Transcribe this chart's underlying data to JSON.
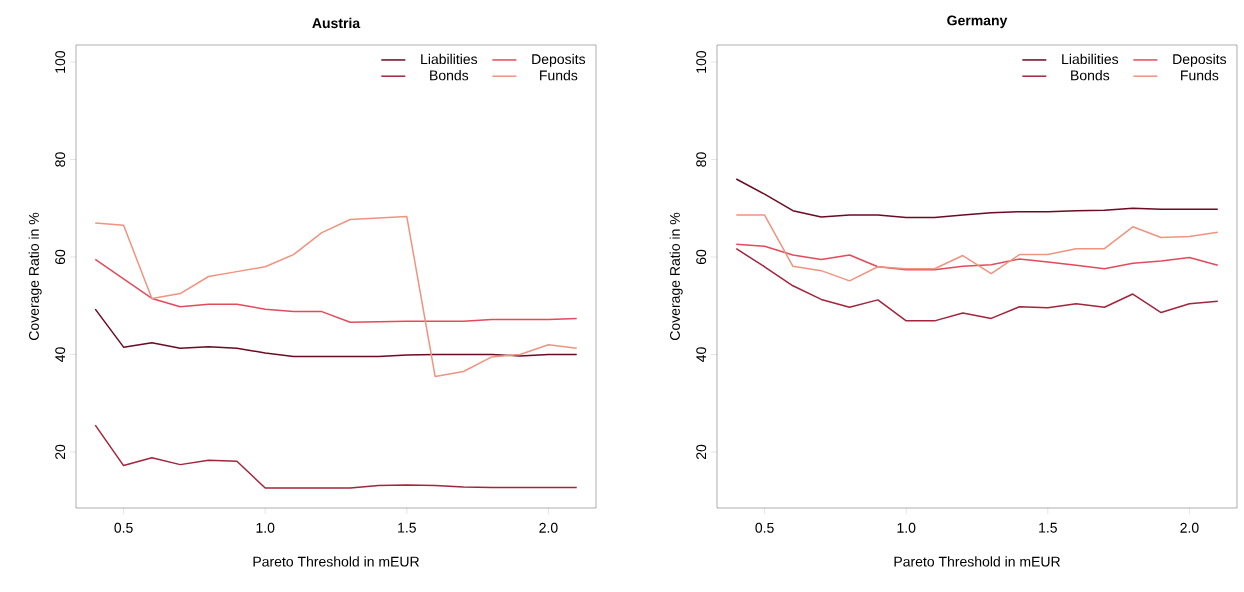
{
  "chart_data": [
    {
      "type": "line",
      "title": "Austria",
      "xlabel": "Pareto Threshold in mEUR",
      "ylabel": "Coverage Ratio in %",
      "legend": "top right",
      "x": [
        0.4,
        0.5,
        0.6,
        0.7,
        0.8,
        0.9,
        1.0,
        1.1,
        1.2,
        1.3,
        1.4,
        1.5,
        1.6,
        1.7,
        1.8,
        1.9,
        2.0,
        2.1
      ],
      "xlim": [
        0.332,
        2.168
      ],
      "ylim": [
        8.5,
        103.5
      ],
      "xticks": [
        {
          "value": 0.5,
          "label": "0.5"
        },
        {
          "value": 1.0,
          "label": "1.0"
        },
        {
          "value": 1.5,
          "label": "1.5"
        },
        {
          "value": 2.0,
          "label": "2.0"
        }
      ],
      "yticks": [
        20,
        40,
        60,
        80,
        100
      ],
      "series": [
        {
          "name": "Liabilities",
          "color": "#6b0a23",
          "values": [
            49.3,
            41.5,
            42.4,
            41.3,
            41.6,
            41.3,
            40.3,
            39.6,
            39.6,
            39.6,
            39.6,
            39.9,
            40,
            40,
            40,
            39.7,
            40,
            40
          ]
        },
        {
          "name": "Bonds",
          "color": "#a3243b",
          "values": [
            25.5,
            17.2,
            18.8,
            17.4,
            18.3,
            18.1,
            12.6,
            12.6,
            12.6,
            12.6,
            13.1,
            13.2,
            13.1,
            12.8,
            12.7,
            12.7,
            12.7,
            12.7
          ]
        },
        {
          "name": "Deposits",
          "color": "#e34a5b",
          "values": [
            59.5,
            55.5,
            51.5,
            49.8,
            50.3,
            50.3,
            49.3,
            48.8,
            48.8,
            46.6,
            46.7,
            46.8,
            46.8,
            46.8,
            47.2,
            47.2,
            47.2,
            47.4
          ]
        },
        {
          "name": "Funds",
          "color": "#f0937f",
          "values": [
            67,
            66.5,
            51.5,
            52.5,
            56,
            57,
            58,
            60.5,
            65,
            67.7,
            68,
            68.3,
            35.5,
            36.5,
            39.5,
            40,
            42,
            41.3
          ]
        }
      ]
    },
    {
      "type": "line",
      "title": "Germany",
      "xlabel": "Pareto Threshold in mEUR",
      "ylabel": "Coverage Ratio in %",
      "legend": "top right",
      "x": [
        0.4,
        0.5,
        0.6,
        0.7,
        0.8,
        0.9,
        1.0,
        1.1,
        1.2,
        1.3,
        1.4,
        1.5,
        1.6,
        1.7,
        1.8,
        1.9,
        2.0,
        2.1
      ],
      "xlim": [
        0.332,
        2.168
      ],
      "ylim": [
        8.5,
        103.5
      ],
      "xticks": [
        {
          "value": 0.5,
          "label": "0.5"
        },
        {
          "value": 1.0,
          "label": "1.0"
        },
        {
          "value": 1.5,
          "label": "1.5"
        },
        {
          "value": 2.0,
          "label": "2.0"
        }
      ],
      "yticks": [
        20,
        40,
        60,
        80,
        100
      ],
      "series": [
        {
          "name": "Liabilities",
          "color": "#6b0a23",
          "values": [
            76.0,
            72.9,
            69.5,
            68.2,
            68.6,
            68.6,
            68.1,
            68.1,
            68.6,
            69.1,
            69.3,
            69.3,
            69.5,
            69.6,
            70.0,
            69.8,
            69.8,
            69.8
          ]
        },
        {
          "name": "Bonds",
          "color": "#a3243b",
          "values": [
            61.7,
            58.0,
            54.1,
            51.3,
            49.7,
            51.2,
            46.9,
            46.9,
            48.5,
            47.4,
            49.8,
            49.6,
            50.4,
            49.7,
            52.4,
            48.6,
            50.4,
            50.9
          ]
        },
        {
          "name": "Deposits",
          "color": "#e34a5b",
          "values": [
            62.6,
            62.2,
            60.4,
            59.5,
            60.4,
            58.0,
            57.4,
            57.4,
            58.1,
            58.4,
            59.6,
            59.0,
            58.3,
            57.6,
            58.7,
            59.2,
            59.9,
            58.3
          ]
        },
        {
          "name": "Funds",
          "color": "#f0937f",
          "values": [
            68.6,
            68.6,
            58.1,
            57.2,
            55.1,
            58.0,
            57.6,
            57.6,
            60.3,
            56.6,
            60.5,
            60.5,
            61.7,
            61.7,
            66.2,
            64.0,
            64.2,
            65.1
          ]
        }
      ]
    }
  ]
}
